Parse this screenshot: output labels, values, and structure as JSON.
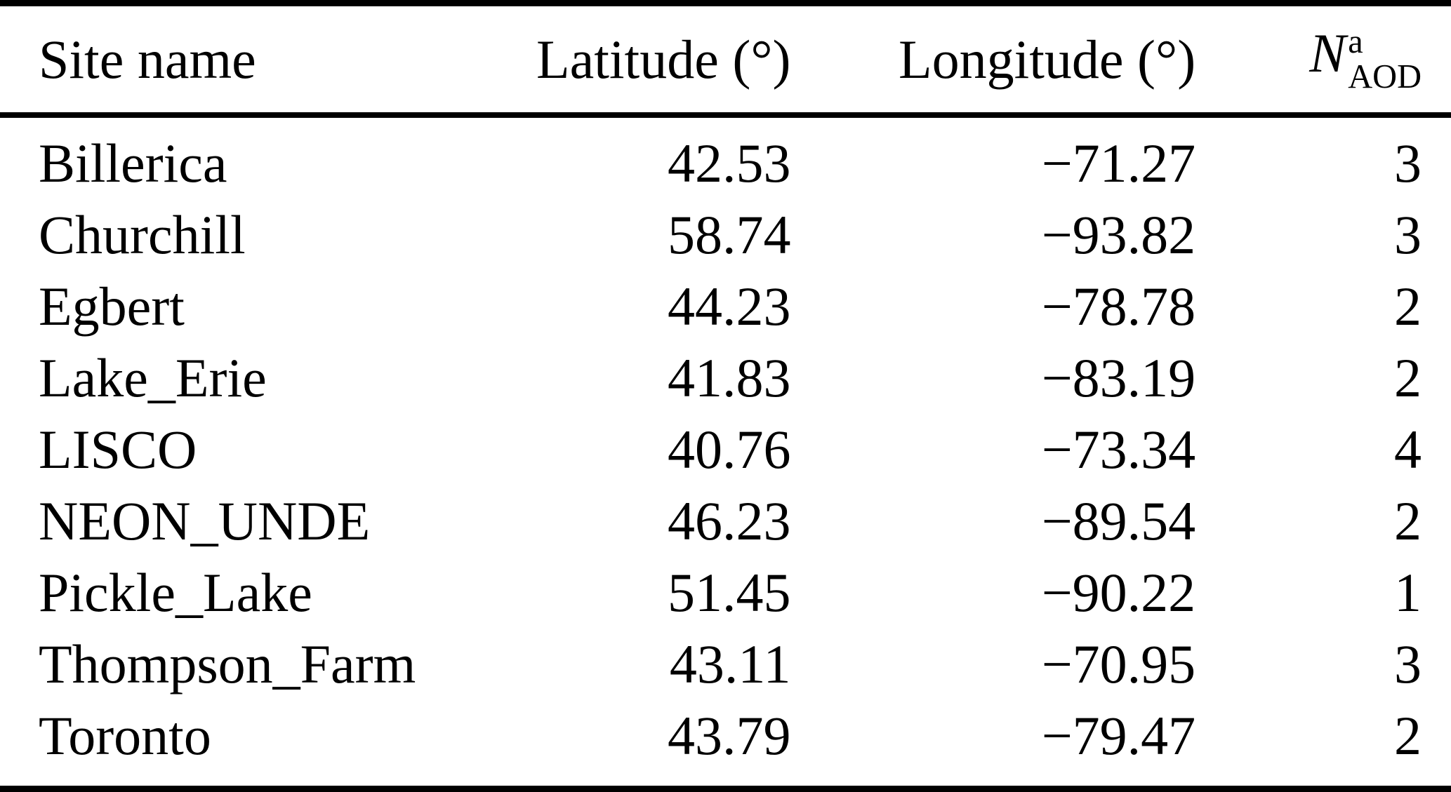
{
  "table": {
    "header": {
      "site": "Site name",
      "latitude": "Latitude (°)",
      "longitude": "Longitude (°)",
      "naod": {
        "base": "N",
        "sup": "a",
        "sub": "AOD"
      }
    },
    "rows": [
      {
        "site": "Billerica",
        "latitude": "42.53",
        "longitude": "−71.27",
        "n_aod": "3"
      },
      {
        "site": "Churchill",
        "latitude": "58.74",
        "longitude": "−93.82",
        "n_aod": "3"
      },
      {
        "site": "Egbert",
        "latitude": "44.23",
        "longitude": "−78.78",
        "n_aod": "2"
      },
      {
        "site": "Lake_Erie",
        "latitude": "41.83",
        "longitude": "−83.19",
        "n_aod": "2"
      },
      {
        "site": "LISCO",
        "latitude": "40.76",
        "longitude": "−73.34",
        "n_aod": "4"
      },
      {
        "site": "NEON_UNDE",
        "latitude": "46.23",
        "longitude": "−89.54",
        "n_aod": "2"
      },
      {
        "site": "Pickle_Lake",
        "latitude": "51.45",
        "longitude": "−90.22",
        "n_aod": "1"
      },
      {
        "site": "Thompson_Farm",
        "latitude": "43.11",
        "longitude": "−70.95",
        "n_aod": "3"
      },
      {
        "site": "Toronto",
        "latitude": "43.79",
        "longitude": "−79.47",
        "n_aod": "2"
      }
    ],
    "colors": {
      "text": "#000000",
      "background": "#ffffff",
      "rule": "#000000"
    }
  }
}
